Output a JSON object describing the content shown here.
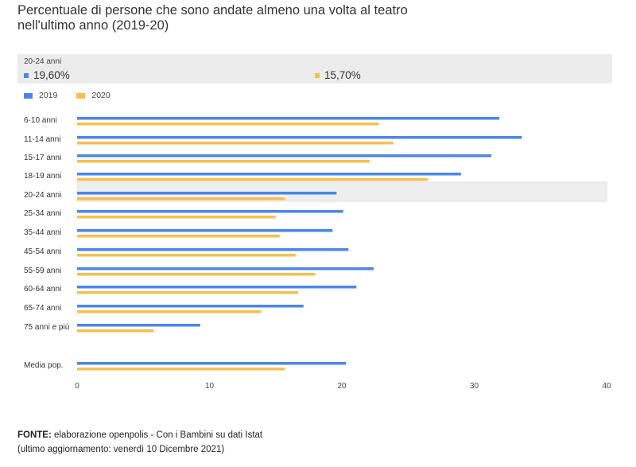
{
  "title": {
    "line1": "Percentuale di persone che sono andate almeno una volta al teatro",
    "line2": "nell'ultimo anno (2019-20)"
  },
  "tooltip": {
    "category": "20-24 anni",
    "value_2019": "19,60%",
    "value_2020": "15,70%"
  },
  "colors": {
    "2019": "#4a86e8",
    "2020": "#f6bf4f",
    "highlight": "#eeeeee"
  },
  "footer": {
    "source_label": "FONTE:",
    "source_text": " elaborazione openpolis - Con i Bambini su dati Istat",
    "updated": "(ultimo aggiornamento: venerdì 10 Dicembre 2021)"
  },
  "chart_data": {
    "type": "bar",
    "orientation": "horizontal",
    "categories": [
      "6-10 anni",
      "11-14 anni",
      "15-17 anni",
      "18-19 anni",
      "20-24 anni",
      "25-34 anni",
      "35-44 anni",
      "45-54 anni",
      "55-59 anni",
      "60-64 anni",
      "65-74 anni",
      "75 anni e più",
      "Media pop."
    ],
    "series": [
      {
        "name": "2019",
        "values": [
          31.9,
          33.6,
          31.3,
          29.0,
          19.6,
          20.1,
          19.3,
          20.5,
          22.4,
          21.1,
          17.1,
          9.3,
          20.3
        ]
      },
      {
        "name": "2020",
        "values": [
          22.8,
          23.9,
          22.1,
          26.5,
          15.7,
          15.0,
          15.3,
          16.5,
          18.0,
          16.7,
          13.9,
          5.8,
          15.7
        ]
      }
    ],
    "xlim": [
      0,
      40
    ],
    "xticks": [
      "0",
      "10",
      "20",
      "30",
      "40"
    ],
    "highlighted": "20-24 anni",
    "legend": "top-left",
    "grid": false
  }
}
